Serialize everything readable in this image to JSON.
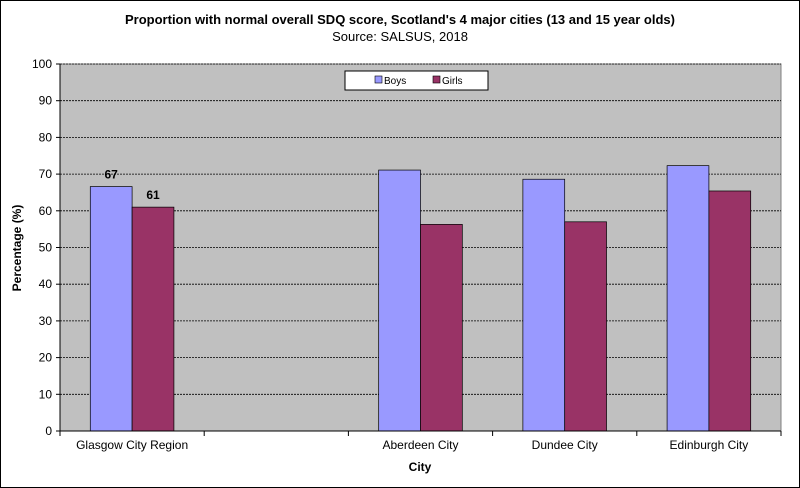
{
  "chart_data": {
    "type": "bar",
    "title": "Proportion with normal overall  SDQ score, Scotland's  4 major cities (13 and 15 year olds)",
    "subtitle": "Source: SALSUS, 2018",
    "xlabel": "City",
    "ylabel": "Percentage (%)",
    "ylim": [
      0,
      100
    ],
    "yticks": [
      0,
      10,
      20,
      30,
      40,
      50,
      60,
      70,
      80,
      90,
      100
    ],
    "grid": true,
    "legend_position": "top-center",
    "categories": [
      "Glasgow City Region",
      "",
      "Aberdeen City",
      "Dundee City",
      "Edinburgh City"
    ],
    "series": [
      {
        "name": "Boys",
        "color": "#9999FF",
        "values": [
          66.6,
          null,
          71.1,
          68.6,
          72.3
        ],
        "data_labels": [
          "67",
          null,
          null,
          null,
          null
        ]
      },
      {
        "name": "Girls",
        "color": "#993366",
        "values": [
          61.0,
          null,
          56.3,
          57.0,
          65.4
        ],
        "data_labels": [
          "61",
          null,
          null,
          null,
          null
        ]
      }
    ],
    "plot_background": "#C0C0C0"
  }
}
